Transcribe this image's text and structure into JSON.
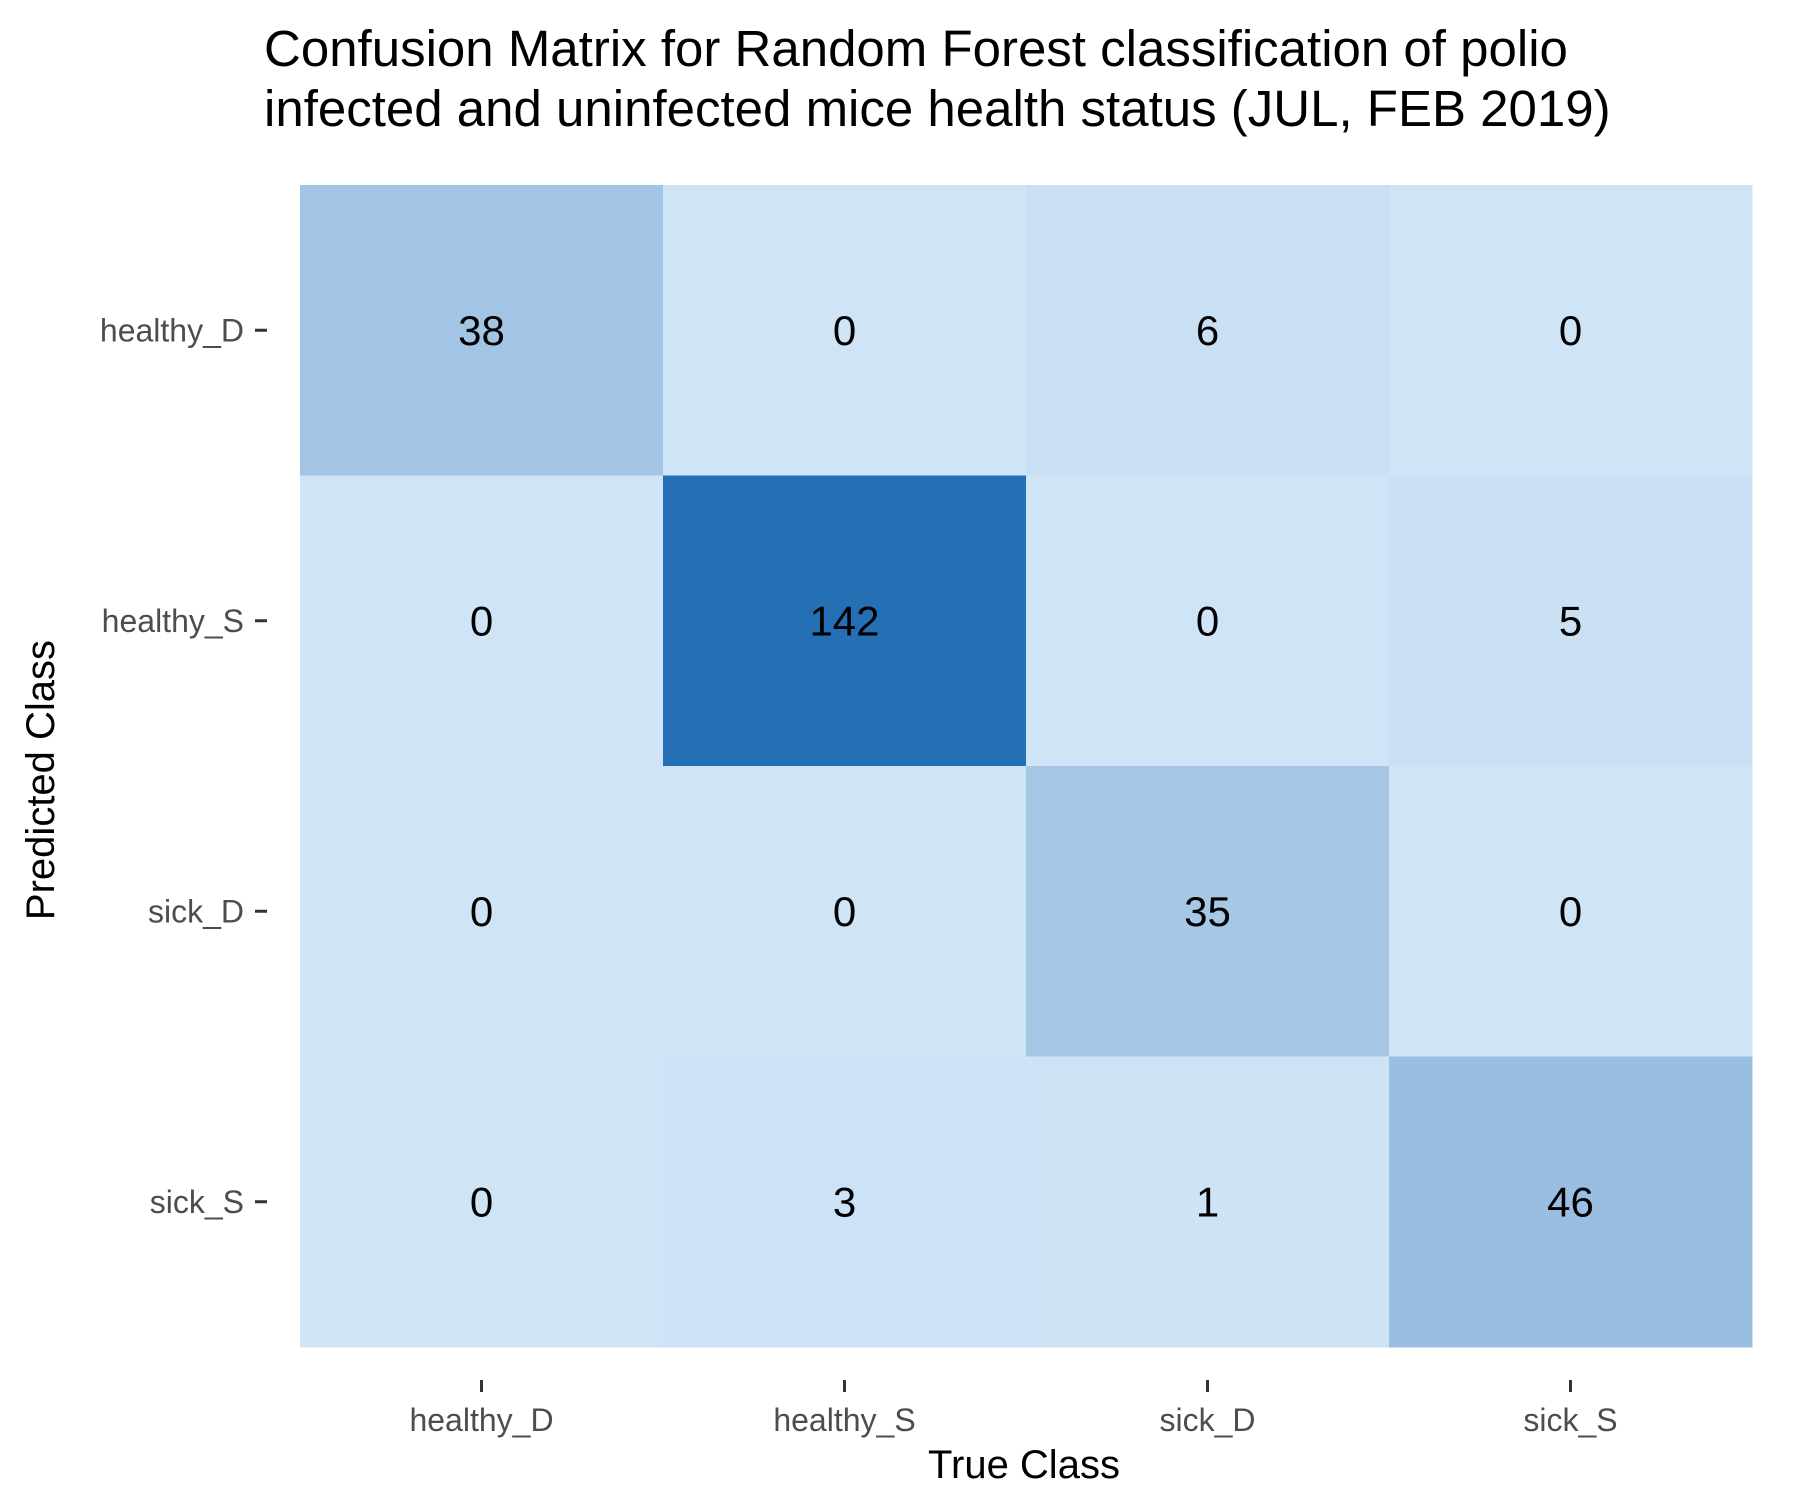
{
  "chart_data": {
    "type": "heatmap",
    "title_lines": [
      "Confusion Matrix for Random Forest classification of polio",
      "infected and uninfected mice health status (JUL, FEB 2019)"
    ],
    "xlabel": "True Class",
    "ylabel": "Predicted Class",
    "x_categories": [
      "healthy_D",
      "healthy_S",
      "sick_D",
      "sick_S"
    ],
    "y_categories": [
      "healthy_D",
      "healthy_S",
      "sick_D",
      "sick_S"
    ],
    "values": [
      [
        38,
        0,
        6,
        0
      ],
      [
        0,
        142,
        0,
        5
      ],
      [
        0,
        0,
        35,
        0
      ],
      [
        0,
        3,
        1,
        46
      ]
    ],
    "color_scale": {
      "low": "#d0e4f7",
      "high": "#2570b4",
      "min": 0,
      "max": 142
    },
    "grid": false,
    "legend": "none"
  }
}
